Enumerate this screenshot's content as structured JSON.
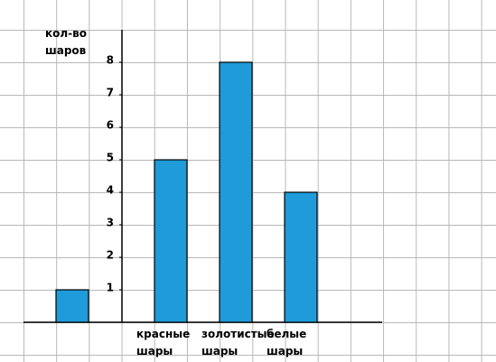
{
  "chart_data": {
    "type": "bar",
    "y_label": "кол-во шаров",
    "categories": [
      null,
      "красные шары",
      "золотистые шары",
      "белые шары"
    ],
    "values": [
      1,
      5,
      8,
      4
    ],
    "color": "#1e9bd8",
    "ylim": [
      0,
      9
    ],
    "yticks": [
      1,
      2,
      3,
      4,
      5,
      6,
      7,
      8
    ],
    "grid": true
  }
}
